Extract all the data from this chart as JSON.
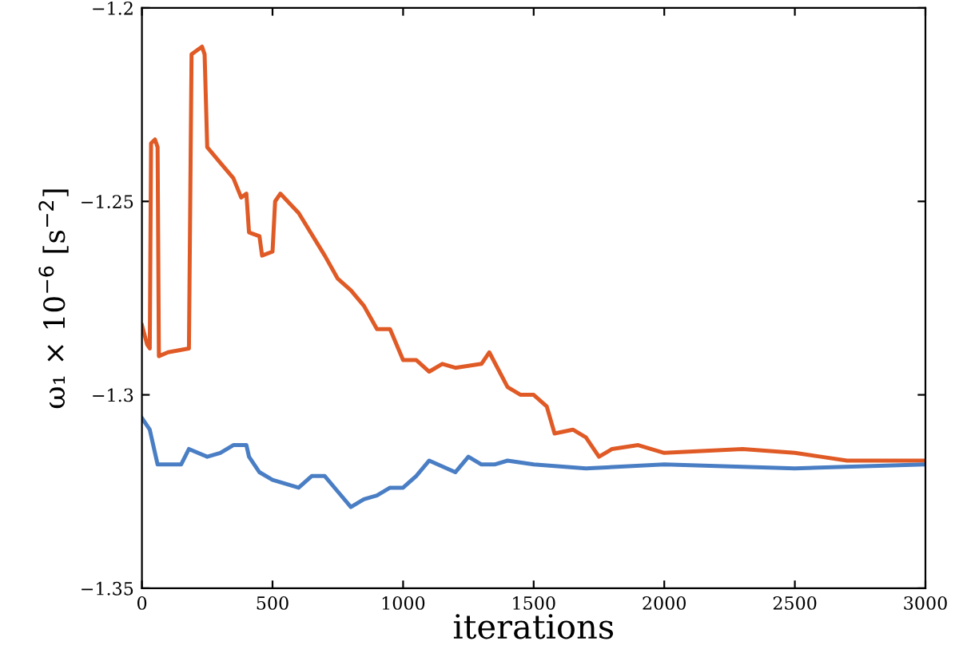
{
  "chart_data": {
    "type": "line",
    "xlabel": "iterations",
    "ylabel": "ω₁ × 10$^{−6}$ [s$^{−2}$]",
    "xlim": [
      0,
      3000
    ],
    "xticks": [
      0,
      500,
      1000,
      1500,
      2000,
      2500,
      3000
    ],
    "ylim": [
      -1.35,
      -1.2
    ],
    "yticks": [
      {
        "value": -1.35,
        "label": "−1.35"
      },
      {
        "value": -1.3,
        "label": "−1.3"
      },
      {
        "value": -1.25,
        "label": "−1.25"
      },
      {
        "value": -1.2,
        "label": "−1.2"
      }
    ],
    "grid": false,
    "legend": false,
    "line_style": "solid",
    "marker": "none",
    "series": [
      {
        "color": "#e05a26",
        "x": [
          0,
          20,
          30,
          35,
          50,
          60,
          65,
          100,
          180,
          190,
          230,
          240,
          250,
          300,
          350,
          380,
          400,
          410,
          450,
          460,
          500,
          510,
          530,
          600,
          700,
          750,
          800,
          850,
          900,
          950,
          1000,
          1050,
          1100,
          1150,
          1200,
          1300,
          1330,
          1400,
          1450,
          1500,
          1550,
          1580,
          1650,
          1700,
          1750,
          1800,
          1900,
          2000,
          2300,
          2500,
          2600,
          2700,
          3000
        ],
        "values": [
          -1.282,
          -1.287,
          -1.288,
          -1.235,
          -1.234,
          -1.236,
          -1.29,
          -1.289,
          -1.288,
          -1.212,
          -1.21,
          -1.212,
          -1.236,
          -1.24,
          -1.244,
          -1.249,
          -1.248,
          -1.258,
          -1.259,
          -1.264,
          -1.263,
          -1.25,
          -1.248,
          -1.253,
          -1.264,
          -1.27,
          -1.273,
          -1.277,
          -1.283,
          -1.283,
          -1.291,
          -1.291,
          -1.294,
          -1.292,
          -1.293,
          -1.292,
          -1.289,
          -1.298,
          -1.3,
          -1.3,
          -1.303,
          -1.31,
          -1.309,
          -1.311,
          -1.316,
          -1.314,
          -1.313,
          -1.315,
          -1.314,
          -1.315,
          -1.316,
          -1.317,
          -1.317
        ]
      },
      {
        "color": "#4a7ec4",
        "x": [
          0,
          30,
          60,
          150,
          180,
          250,
          300,
          350,
          400,
          410,
          450,
          500,
          600,
          650,
          700,
          750,
          800,
          850,
          900,
          950,
          1000,
          1050,
          1100,
          1200,
          1250,
          1300,
          1350,
          1400,
          1500,
          1700,
          2000,
          2500,
          3000
        ],
        "values": [
          -1.306,
          -1.309,
          -1.318,
          -1.318,
          -1.314,
          -1.316,
          -1.315,
          -1.313,
          -1.313,
          -1.316,
          -1.32,
          -1.322,
          -1.324,
          -1.321,
          -1.321,
          -1.325,
          -1.329,
          -1.327,
          -1.326,
          -1.324,
          -1.324,
          -1.321,
          -1.317,
          -1.32,
          -1.316,
          -1.318,
          -1.318,
          -1.317,
          -1.318,
          -1.319,
          -1.318,
          -1.319,
          -1.318
        ]
      }
    ]
  }
}
